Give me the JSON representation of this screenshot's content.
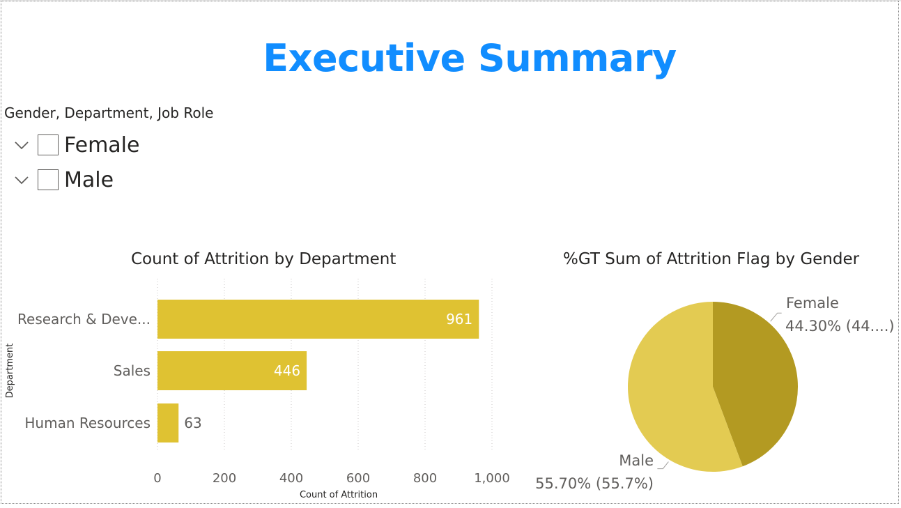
{
  "page": {
    "title": "Executive Summary"
  },
  "slicer": {
    "header": "Gender, Department, Job Role",
    "items": [
      {
        "label": "Female"
      },
      {
        "label": "Male"
      }
    ]
  },
  "colors": {
    "title": "#118dff",
    "bar": "#dfc232",
    "pie_female": "#b39a22",
    "pie_male": "#e3cb52"
  },
  "chart_data": [
    {
      "type": "bar",
      "orientation": "horizontal",
      "title": "Count of Attrition by Department",
      "xlabel": "Count of Attrition",
      "ylabel": "Department",
      "categories": [
        "Research & Deve...",
        "Sales",
        "Human Resources"
      ],
      "values": [
        961,
        446,
        63
      ],
      "xlim": [
        0,
        1000
      ],
      "xticks": [
        "0",
        "200",
        "400",
        "600",
        "800",
        "1,000"
      ],
      "grid": true
    },
    {
      "type": "pie",
      "title": "%GT Sum of Attrition Flag by Gender",
      "labels": [
        "Female",
        "Male"
      ],
      "values": [
        44.3,
        55.7
      ],
      "data_labels": [
        "44.30% (44....)",
        "55.70% (55.7%)"
      ]
    }
  ]
}
